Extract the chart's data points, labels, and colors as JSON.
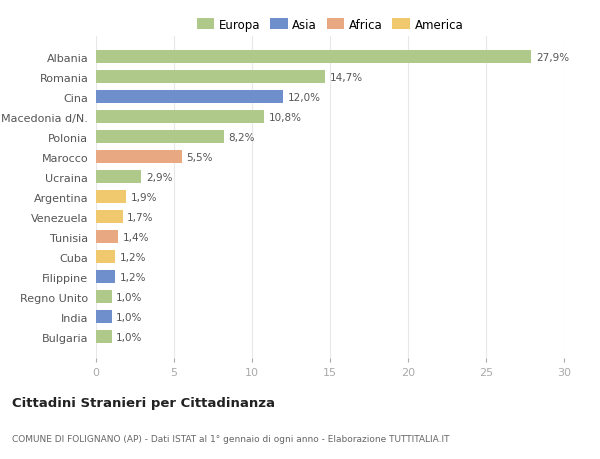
{
  "countries": [
    "Albania",
    "Romania",
    "Cina",
    "Macedonia d/N.",
    "Polonia",
    "Marocco",
    "Ucraina",
    "Argentina",
    "Venezuela",
    "Tunisia",
    "Cuba",
    "Filippine",
    "Regno Unito",
    "India",
    "Bulgaria"
  ],
  "values": [
    27.9,
    14.7,
    12.0,
    10.8,
    8.2,
    5.5,
    2.9,
    1.9,
    1.7,
    1.4,
    1.2,
    1.2,
    1.0,
    1.0,
    1.0
  ],
  "labels": [
    "27,9%",
    "14,7%",
    "12,0%",
    "10,8%",
    "8,2%",
    "5,5%",
    "2,9%",
    "1,9%",
    "1,7%",
    "1,4%",
    "1,2%",
    "1,2%",
    "1,0%",
    "1,0%",
    "1,0%"
  ],
  "colors": [
    "#aec98a",
    "#aec98a",
    "#6e8fcb",
    "#aec98a",
    "#aec98a",
    "#e8a882",
    "#aec98a",
    "#f0c96e",
    "#f0c96e",
    "#e8a882",
    "#f0c96e",
    "#6e8fcb",
    "#aec98a",
    "#6e8fcb",
    "#aec98a"
  ],
  "legend_labels": [
    "Europa",
    "Asia",
    "Africa",
    "America"
  ],
  "legend_colors": [
    "#aec98a",
    "#6e8fcb",
    "#e8a882",
    "#f0c96e"
  ],
  "title": "Cittadini Stranieri per Cittadinanza",
  "subtitle": "COMUNE DI FOLIGNANO (AP) - Dati ISTAT al 1° gennaio di ogni anno - Elaborazione TUTTITALIA.IT",
  "xlim": [
    0,
    30
  ],
  "xticks": [
    0,
    5,
    10,
    15,
    20,
    25,
    30
  ],
  "background_color": "#ffffff",
  "grid_color": "#e8e8e8",
  "bar_height": 0.65
}
